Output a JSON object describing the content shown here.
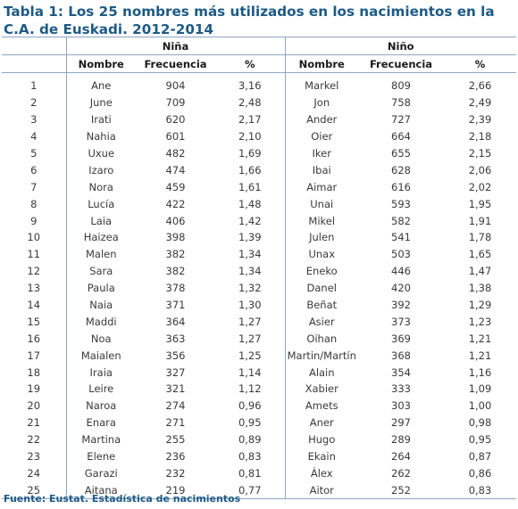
{
  "title": "Tabla 1: Los 25 nombres más utilizados en los nacimientos en la C.A. de Euskadi. 2012-2014",
  "groups": {
    "nina": "Niña",
    "nino": "Niño"
  },
  "columns": {
    "nombre": "Nombre",
    "frecuencia": "Frecuencia",
    "pct": "%"
  },
  "rows": [
    {
      "rank": "1",
      "nina_name": "Ane",
      "nina_freq": "904",
      "nina_pct": "3,16",
      "nino_name": "Markel",
      "nino_freq": "809",
      "nino_pct": "2,66"
    },
    {
      "rank": "2",
      "nina_name": "June",
      "nina_freq": "709",
      "nina_pct": "2,48",
      "nino_name": "Jon",
      "nino_freq": "758",
      "nino_pct": "2,49"
    },
    {
      "rank": "3",
      "nina_name": "Irati",
      "nina_freq": "620",
      "nina_pct": "2,17",
      "nino_name": "Ander",
      "nino_freq": "727",
      "nino_pct": "2,39"
    },
    {
      "rank": "4",
      "nina_name": "Nahia",
      "nina_freq": "601",
      "nina_pct": "2,10",
      "nino_name": "Oier",
      "nino_freq": "664",
      "nino_pct": "2,18"
    },
    {
      "rank": "5",
      "nina_name": "Uxue",
      "nina_freq": "482",
      "nina_pct": "1,69",
      "nino_name": "Iker",
      "nino_freq": "655",
      "nino_pct": "2,15"
    },
    {
      "rank": "6",
      "nina_name": "Izaro",
      "nina_freq": "474",
      "nina_pct": "1,66",
      "nino_name": "Ibai",
      "nino_freq": "628",
      "nino_pct": "2,06"
    },
    {
      "rank": "7",
      "nina_name": "Nora",
      "nina_freq": "459",
      "nina_pct": "1,61",
      "nino_name": "Aimar",
      "nino_freq": "616",
      "nino_pct": "2,02"
    },
    {
      "rank": "8",
      "nina_name": "Lucía",
      "nina_freq": "422",
      "nina_pct": "1,48",
      "nino_name": "Unai",
      "nino_freq": "593",
      "nino_pct": "1,95"
    },
    {
      "rank": "9",
      "nina_name": "Laia",
      "nina_freq": "406",
      "nina_pct": "1,42",
      "nino_name": "Mikel",
      "nino_freq": "582",
      "nino_pct": "1,91"
    },
    {
      "rank": "10",
      "nina_name": "Haizea",
      "nina_freq": "398",
      "nina_pct": "1,39",
      "nino_name": "Julen",
      "nino_freq": "541",
      "nino_pct": "1,78"
    },
    {
      "rank": "11",
      "nina_name": "Malen",
      "nina_freq": "382",
      "nina_pct": "1,34",
      "nino_name": "Unax",
      "nino_freq": "503",
      "nino_pct": "1,65"
    },
    {
      "rank": "12",
      "nina_name": "Sara",
      "nina_freq": "382",
      "nina_pct": "1,34",
      "nino_name": "Eneko",
      "nino_freq": "446",
      "nino_pct": "1,47"
    },
    {
      "rank": "13",
      "nina_name": "Paula",
      "nina_freq": "378",
      "nina_pct": "1,32",
      "nino_name": "Danel",
      "nino_freq": "420",
      "nino_pct": "1,38"
    },
    {
      "rank": "14",
      "nina_name": "Naia",
      "nina_freq": "371",
      "nina_pct": "1,30",
      "nino_name": "Beñat",
      "nino_freq": "392",
      "nino_pct": "1,29"
    },
    {
      "rank": "15",
      "nina_name": "Maddi",
      "nina_freq": "364",
      "nina_pct": "1,27",
      "nino_name": "Asier",
      "nino_freq": "373",
      "nino_pct": "1,23"
    },
    {
      "rank": "16",
      "nina_name": "Noa",
      "nina_freq": "363",
      "nina_pct": "1,27",
      "nino_name": "Oihan",
      "nino_freq": "369",
      "nino_pct": "1,21"
    },
    {
      "rank": "17",
      "nina_name": "Maialen",
      "nina_freq": "356",
      "nina_pct": "1,25",
      "nino_name": "Martin/Martín",
      "nino_freq": "368",
      "nino_pct": "1,21"
    },
    {
      "rank": "18",
      "nina_name": "Iraia",
      "nina_freq": "327",
      "nina_pct": "1,14",
      "nino_name": "Alain",
      "nino_freq": "354",
      "nino_pct": "1,16"
    },
    {
      "rank": "19",
      "nina_name": "Leire",
      "nina_freq": "321",
      "nina_pct": "1,12",
      "nino_name": "Xabier",
      "nino_freq": "333",
      "nino_pct": "1,09"
    },
    {
      "rank": "20",
      "nina_name": "Naroa",
      "nina_freq": "274",
      "nina_pct": "0,96",
      "nino_name": "Amets",
      "nino_freq": "303",
      "nino_pct": "1,00"
    },
    {
      "rank": "21",
      "nina_name": "Enara",
      "nina_freq": "271",
      "nina_pct": "0,95",
      "nino_name": "Aner",
      "nino_freq": "297",
      "nino_pct": "0,98"
    },
    {
      "rank": "22",
      "nina_name": "Martina",
      "nina_freq": "255",
      "nina_pct": "0,89",
      "nino_name": "Hugo",
      "nino_freq": "289",
      "nino_pct": "0,95"
    },
    {
      "rank": "23",
      "nina_name": "Elene",
      "nina_freq": "236",
      "nina_pct": "0,83",
      "nino_name": "Ekain",
      "nino_freq": "264",
      "nino_pct": "0,87"
    },
    {
      "rank": "24",
      "nina_name": "Garazi",
      "nina_freq": "232",
      "nina_pct": "0,81",
      "nino_name": "Álex",
      "nino_freq": "262",
      "nino_pct": "0,86"
    },
    {
      "rank": "25",
      "nina_name": "Aitana",
      "nina_freq": "219",
      "nina_pct": "0,77",
      "nino_name": "Aitor",
      "nino_freq": "252",
      "nino_pct": "0,83"
    }
  ],
  "source": "Fuente: Eustat. Estadística de nacimientos",
  "colors": {
    "title": "#1e5a86",
    "border": "#8aa6c4",
    "text": "#3a3a3a"
  }
}
